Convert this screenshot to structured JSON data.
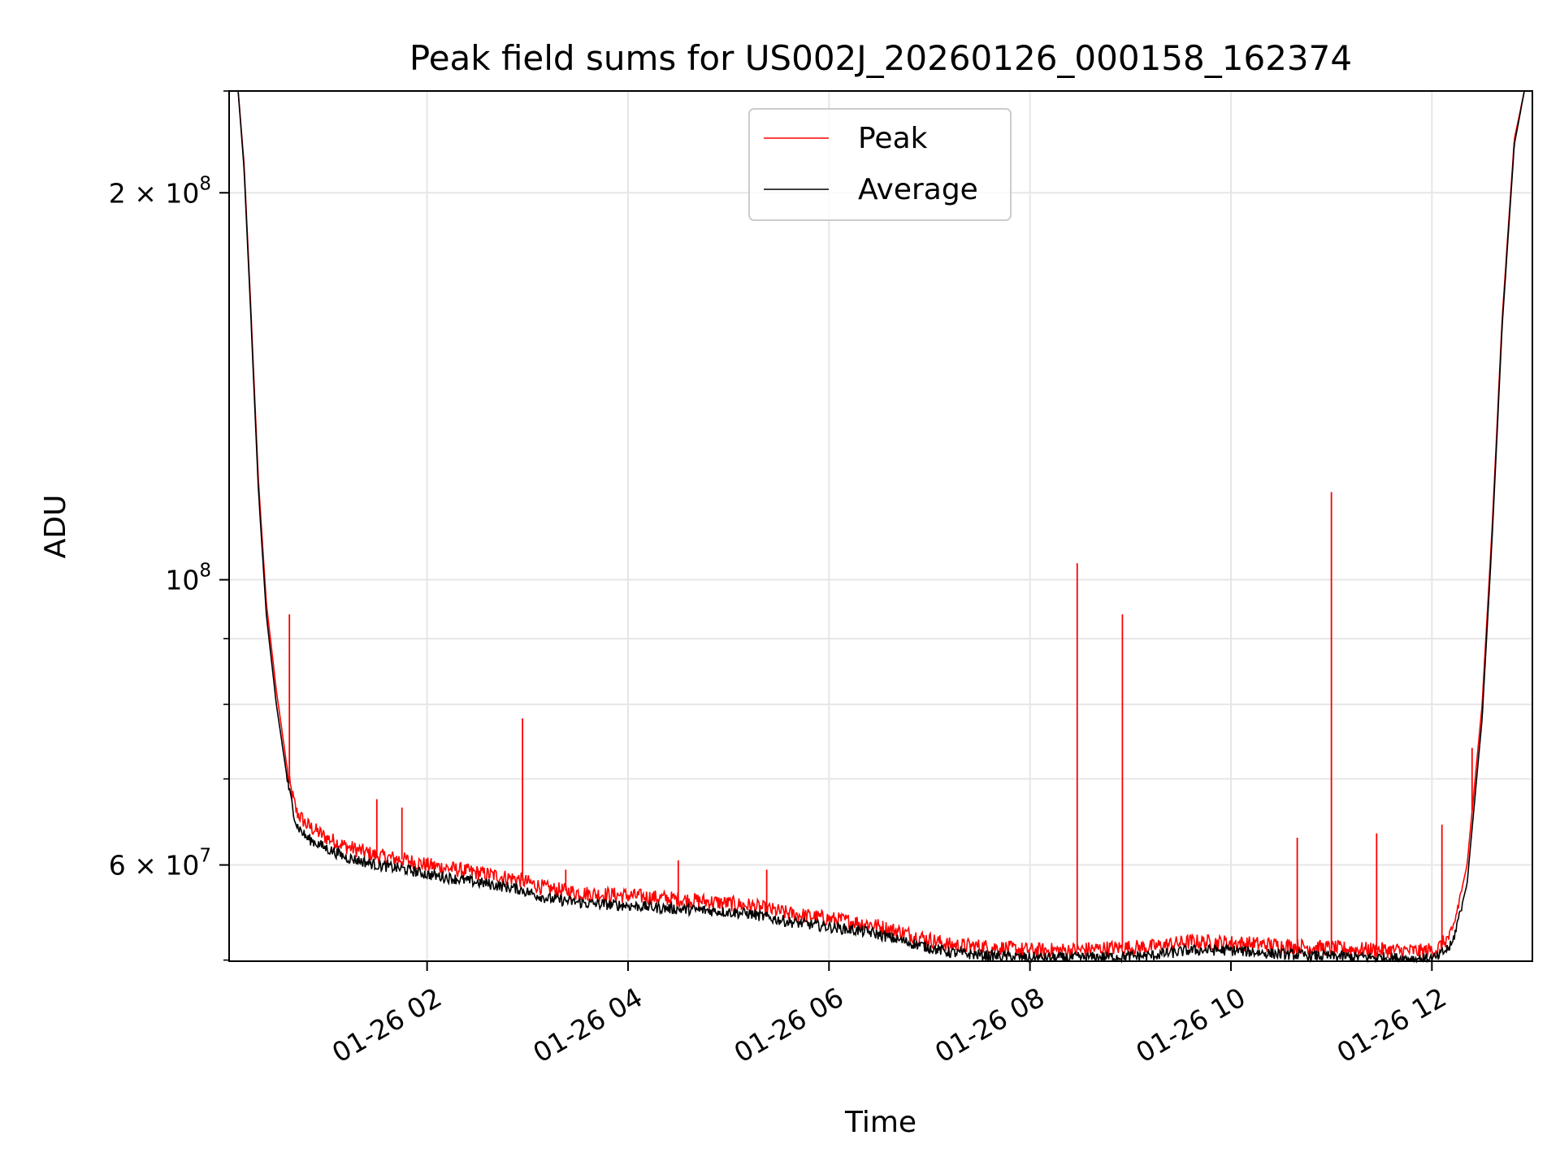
{
  "chart_data": {
    "type": "line",
    "title": "Peak field sums for US002J_20260126_000158_162374",
    "xlabel": "Time",
    "ylabel": "ADU",
    "yscale": "log",
    "xlim_hours": [
      0.03,
      13.0
    ],
    "ylim": [
      50500000,
      240000000
    ],
    "grid": true,
    "legend_position": "upper center",
    "x_ticks": [
      {
        "value": 2,
        "label": "01-26 02"
      },
      {
        "value": 4,
        "label": "01-26 04"
      },
      {
        "value": 6,
        "label": "01-26 06"
      },
      {
        "value": 8,
        "label": "01-26 08"
      },
      {
        "value": 10,
        "label": "01-26 10"
      },
      {
        "value": 12,
        "label": "01-26 12"
      }
    ],
    "y_major_ticks": [
      {
        "value": 60000000,
        "base": "6",
        "exp": "7"
      },
      {
        "value": 100000000,
        "base": "",
        "exp": "8"
      },
      {
        "value": 200000000,
        "base": "2",
        "exp": "8"
      }
    ],
    "y_minor_ticks": [
      70000000,
      80000000,
      90000000
    ],
    "series": [
      {
        "name": "Peak",
        "color": "#ff0000",
        "x_hours": [
          0.12,
          0.18,
          0.25,
          0.32,
          0.4,
          0.5,
          0.58,
          0.62,
          0.7,
          0.8,
          1.0,
          1.2,
          1.5,
          1.8,
          2.0,
          2.3,
          2.6,
          2.9,
          3.2,
          3.6,
          4.0,
          4.4,
          4.8,
          5.2,
          5.6,
          6.0,
          6.4,
          6.8,
          7.2,
          7.6,
          8.0,
          8.4,
          8.8,
          9.2,
          9.6,
          10.0,
          10.4,
          10.8,
          11.2,
          11.6,
          11.9,
          12.05,
          12.2,
          12.35,
          12.5,
          12.6,
          12.7,
          12.82,
          12.92
        ],
        "values": [
          240000000,
          210000000,
          160000000,
          120000000,
          96000000,
          82000000,
          74000000,
          70000000,
          66000000,
          64500000,
          63000000,
          62000000,
          61000000,
          60500000,
          60000000,
          59500000,
          59000000,
          58500000,
          57500000,
          57000000,
          56800000,
          56500000,
          56200000,
          55800000,
          55000000,
          54500000,
          54000000,
          53000000,
          52000000,
          51800000,
          51500000,
          51500000,
          51700000,
          51800000,
          52300000,
          52200000,
          52000000,
          51800000,
          51600000,
          51500000,
          51400000,
          51600000,
          53000000,
          60000000,
          80000000,
          110000000,
          160000000,
          220000000,
          240000000
        ],
        "spikes": [
          {
            "x_hours": 0.63,
            "value": 94000000
          },
          {
            "x_hours": 1.5,
            "value": 67500000
          },
          {
            "x_hours": 1.75,
            "value": 66500000
          },
          {
            "x_hours": 2.95,
            "value": 78000000
          },
          {
            "x_hours": 3.38,
            "value": 59500000
          },
          {
            "x_hours": 4.5,
            "value": 60500000
          },
          {
            "x_hours": 5.38,
            "value": 59500000
          },
          {
            "x_hours": 8.47,
            "value": 103000000
          },
          {
            "x_hours": 8.92,
            "value": 94000000
          },
          {
            "x_hours": 10.66,
            "value": 63000000
          },
          {
            "x_hours": 11.0,
            "value": 117000000
          },
          {
            "x_hours": 11.45,
            "value": 63500000
          },
          {
            "x_hours": 12.1,
            "value": 64500000
          },
          {
            "x_hours": 12.4,
            "value": 74000000
          }
        ]
      },
      {
        "name": "Average",
        "color": "#000000",
        "x_hours": [
          0.12,
          0.18,
          0.25,
          0.32,
          0.4,
          0.5,
          0.58,
          0.62,
          0.7,
          0.8,
          1.0,
          1.2,
          1.5,
          1.8,
          2.0,
          2.3,
          2.6,
          2.9,
          3.2,
          3.6,
          4.0,
          4.4,
          4.8,
          5.2,
          5.6,
          6.0,
          6.4,
          6.8,
          7.2,
          7.6,
          8.0,
          8.4,
          8.8,
          9.2,
          9.6,
          10.0,
          10.4,
          10.8,
          11.2,
          11.6,
          11.9,
          12.05,
          12.2,
          12.35,
          12.5,
          12.6,
          12.7,
          12.82,
          12.92
        ],
        "values": [
          240000000,
          208000000,
          158000000,
          118000000,
          94000000,
          80000000,
          72500000,
          69000000,
          64500000,
          63000000,
          61800000,
          60800000,
          60000000,
          59500000,
          59000000,
          58500000,
          58000000,
          57500000,
          56500000,
          56000000,
          55800000,
          55500000,
          55300000,
          55000000,
          54200000,
          53700000,
          53200000,
          52200000,
          51300000,
          51000000,
          50800000,
          50800000,
          50900000,
          51000000,
          51500000,
          51500000,
          51200000,
          51000000,
          50900000,
          50800000,
          50700000,
          50800000,
          52000000,
          58000000,
          78000000,
          108000000,
          158000000,
          218000000,
          240000000
        ]
      }
    ]
  }
}
